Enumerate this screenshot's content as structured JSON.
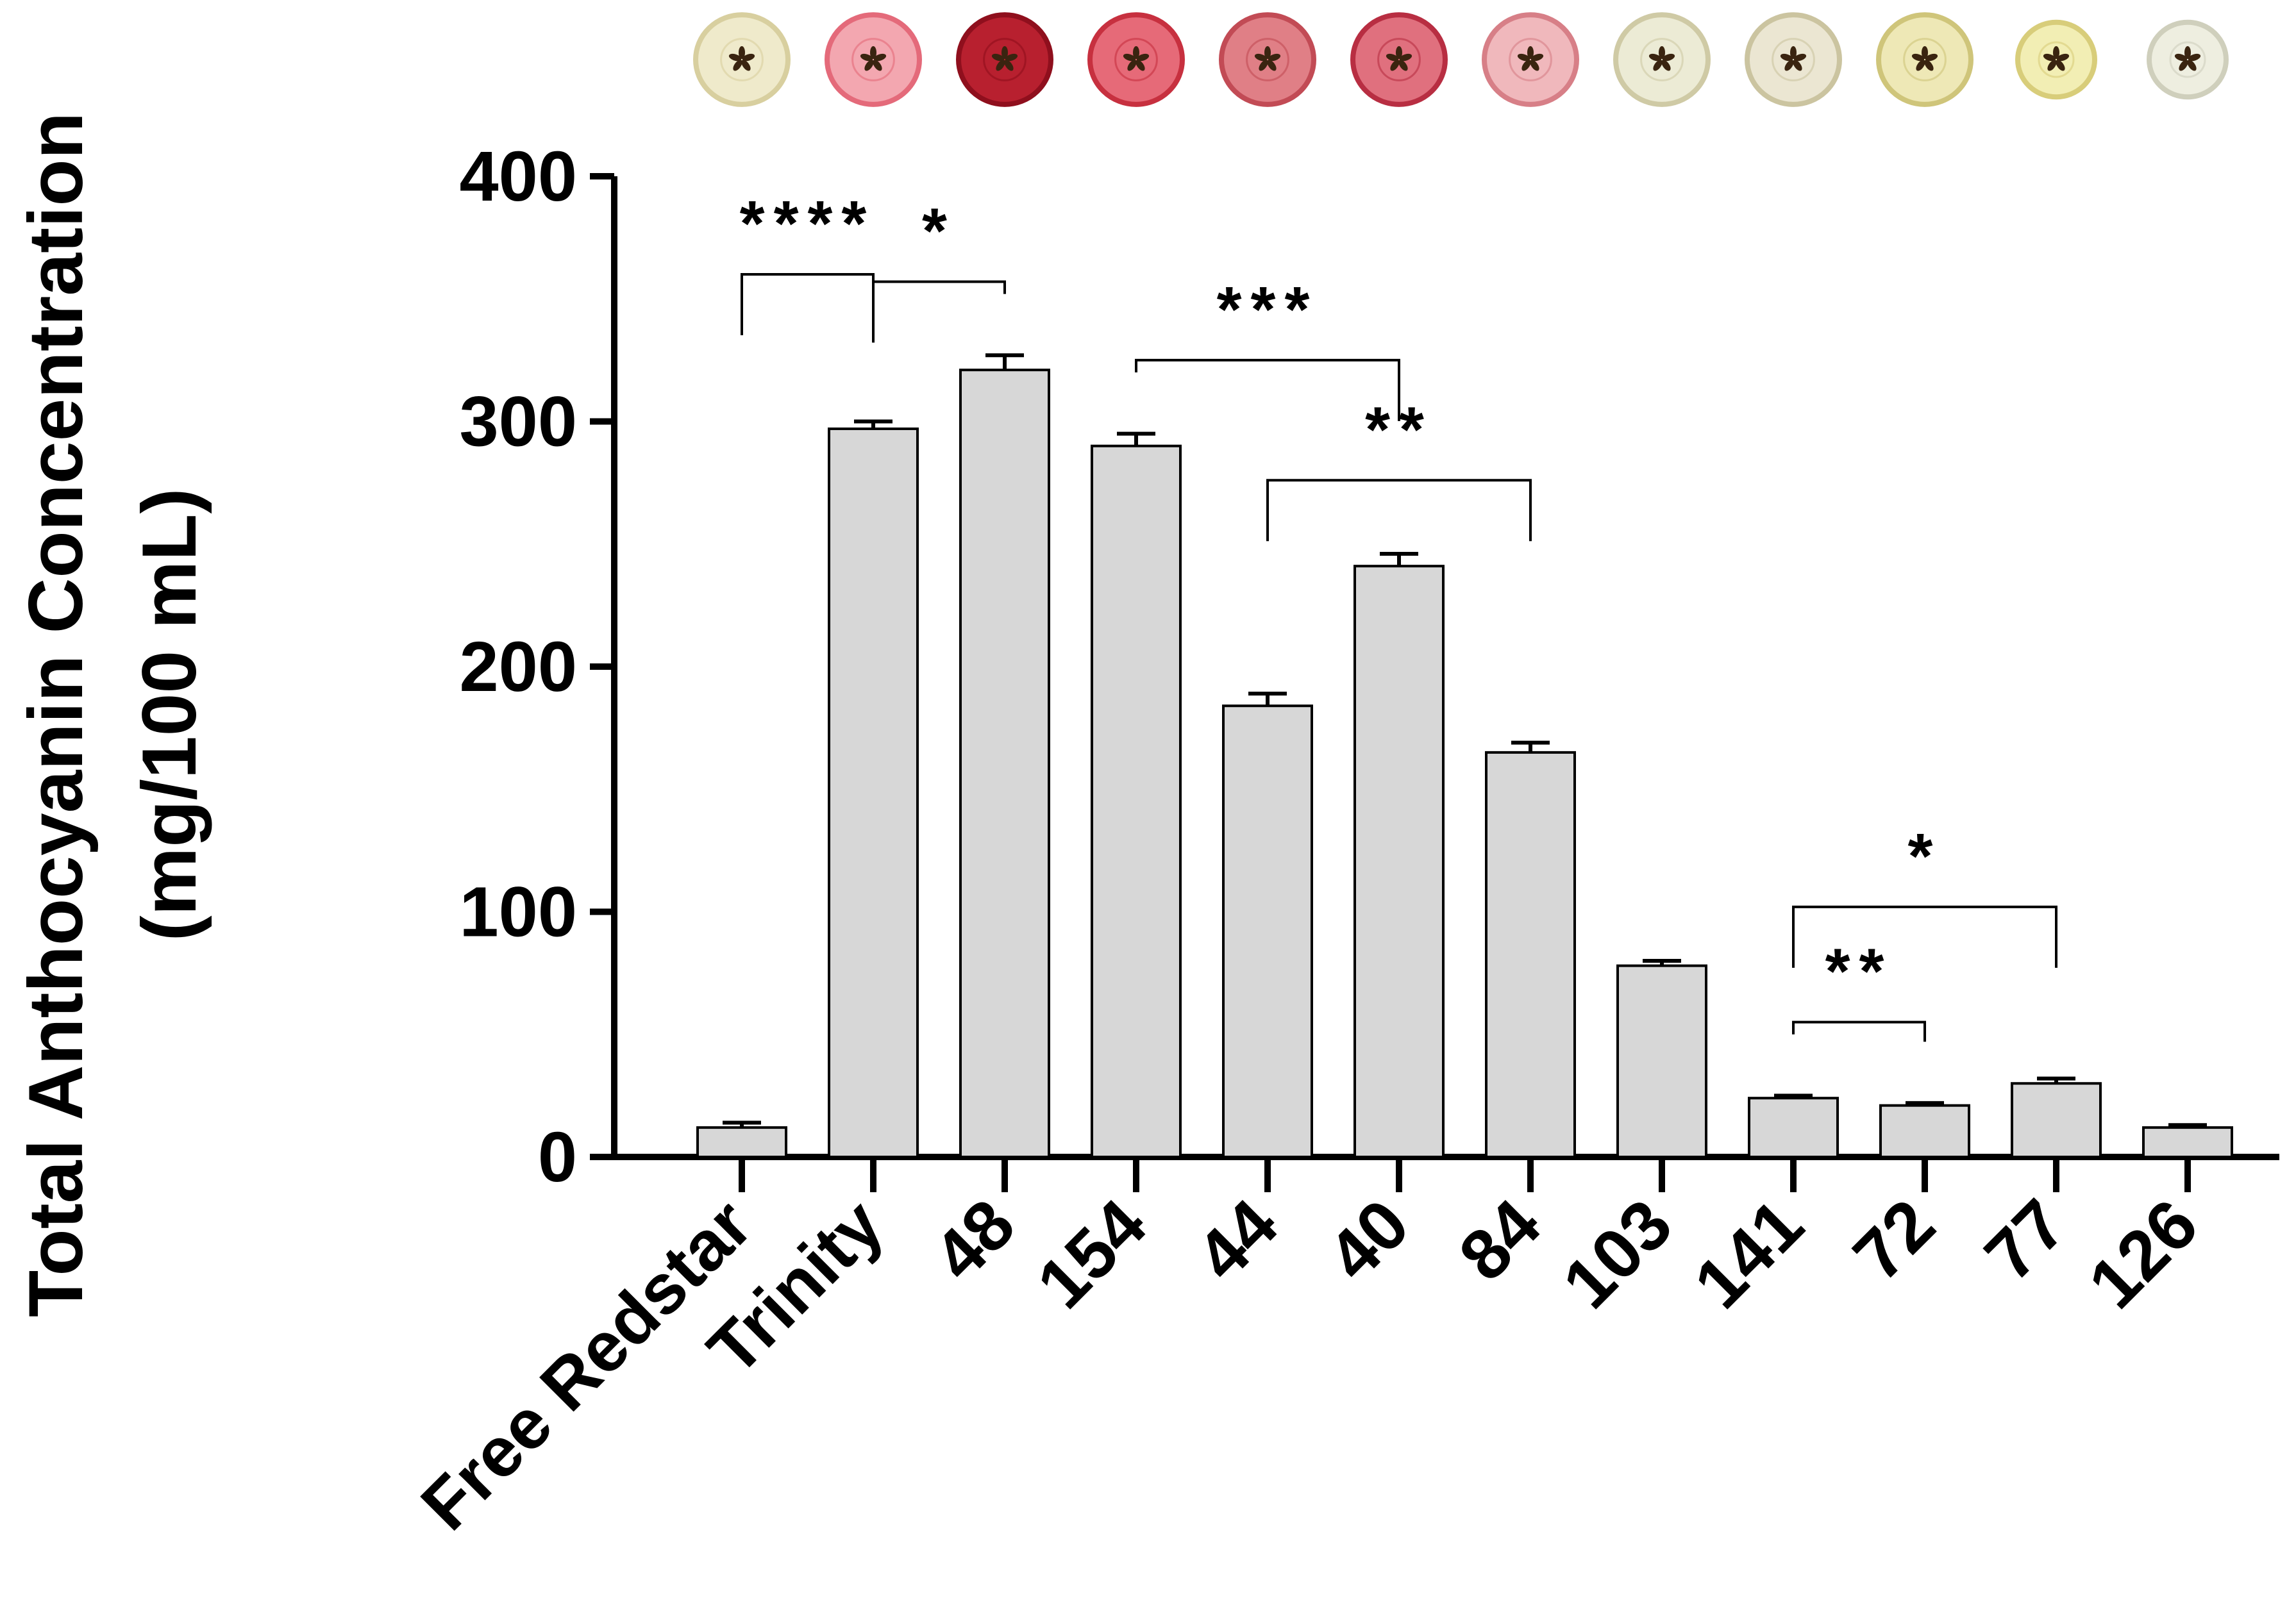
{
  "chart_data": {
    "type": "bar",
    "title": "",
    "xlabel": "",
    "ylabel_line1": "Total Anthocyanin Concentration",
    "ylabel_line2": "(mg/100 mL)",
    "ylim": [
      0,
      400
    ],
    "yticks": [
      0,
      100,
      200,
      300,
      400
    ],
    "grid": false,
    "legend": "none",
    "categories": [
      "Free Redstar",
      "Trinity",
      "48",
      "154",
      "44",
      "40",
      "84",
      "103",
      "141",
      "72",
      "77",
      "126"
    ],
    "values": [
      12,
      297,
      321,
      290,
      184,
      241,
      165,
      78,
      24,
      21,
      30,
      12
    ],
    "errors": [
      2,
      3,
      6,
      5,
      5,
      5,
      4,
      2,
      1,
      1,
      2,
      1
    ],
    "significance": [
      {
        "from": "Free Redstar",
        "to": "Trinity",
        "label": "****"
      },
      {
        "from": "Trinity",
        "to": "48",
        "label": "*"
      },
      {
        "from": "154",
        "to": "40",
        "label": "***"
      },
      {
        "from": "44",
        "to": "84",
        "label": "**"
      },
      {
        "from": "141",
        "to": "72",
        "label": "**"
      },
      {
        "from": "141",
        "to": "77",
        "label": "*"
      }
    ],
    "fruit_colors": [
      {
        "flesh": "#efeacb",
        "rim": "#d8cf9f"
      },
      {
        "flesh": "#f3a7b0",
        "rim": "#e46a7a"
      },
      {
        "flesh": "#b8202f",
        "rim": "#8f0f1d"
      },
      {
        "flesh": "#e66a78",
        "rim": "#c7303f"
      },
      {
        "flesh": "#e07f86",
        "rim": "#c24b55"
      },
      {
        "flesh": "#e0707e",
        "rim": "#b82e42"
      },
      {
        "flesh": "#f0b8bc",
        "rim": "#d77f87"
      },
      {
        "flesh": "#ecebd5",
        "rim": "#cfcaa5"
      },
      {
        "flesh": "#ebe6d2",
        "rim": "#cbc4a0"
      },
      {
        "flesh": "#eee8b6",
        "rim": "#cfc57a"
      },
      {
        "flesh": "#f2eeb4",
        "rim": "#d8cd7a"
      },
      {
        "flesh": "#eeeee0",
        "rim": "#cfcfbc"
      }
    ],
    "colors": {
      "bar_fill": "#d7d7d7",
      "bar_stroke": "#000000",
      "axis": "#000000"
    }
  }
}
